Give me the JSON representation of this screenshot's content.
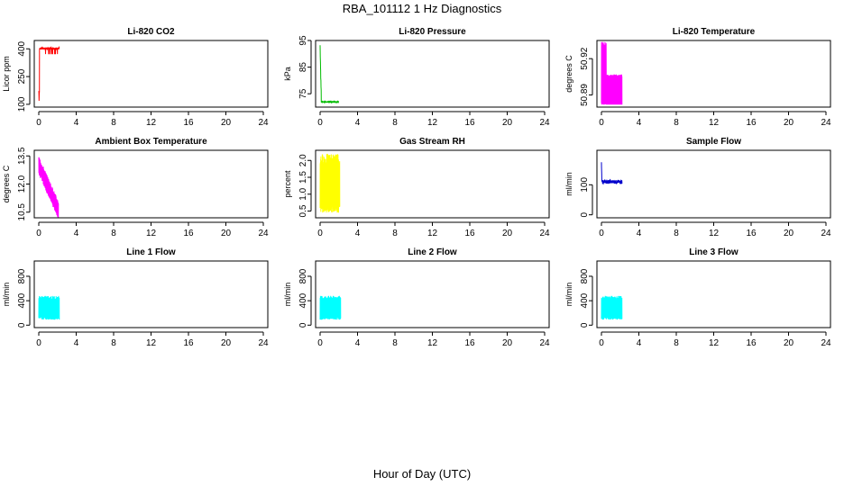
{
  "title": "RBA_101112  1 Hz Diagnostics",
  "xlabel": "Hour of Day (UTC)",
  "chart_data": [
    {
      "type": "line",
      "title": "Li-820 CO2",
      "ylabel": "Licor ppm",
      "xlim": [
        0,
        24
      ],
      "ylim": [
        85,
        445
      ],
      "xticks": [
        "0",
        "4",
        "8",
        "12",
        "16",
        "20",
        "24"
      ],
      "yticks": [
        {
          "v": 100,
          "l": "100"
        },
        {
          "v": 250,
          "l": "250"
        },
        {
          "v": 400,
          "l": "400"
        }
      ],
      "color": "#ff0000",
      "pattern": "co2",
      "x_end": 2.2
    },
    {
      "type": "line",
      "title": "Li-820 Pressure",
      "ylabel": "kPa",
      "xlim": [
        0,
        24
      ],
      "ylim": [
        70,
        95
      ],
      "xticks": [
        "0",
        "4",
        "8",
        "12",
        "16",
        "20",
        "24"
      ],
      "yticks": [
        {
          "v": 75,
          "l": "75"
        },
        {
          "v": 85,
          "l": "85"
        },
        {
          "v": 95,
          "l": "95"
        }
      ],
      "color": "#00bb00",
      "pattern": "pressure",
      "x_end": 2.0
    },
    {
      "type": "line",
      "title": "Li-820 Temperature",
      "ylabel": "degrees C",
      "xlim": [
        0,
        24
      ],
      "ylim": [
        50.88,
        50.935
      ],
      "xticks": [
        "0",
        "4",
        "8",
        "12",
        "16",
        "20",
        "24"
      ],
      "yticks": [
        {
          "v": 50.89,
          "l": "50.89"
        },
        {
          "v": 50.92,
          "l": "50.92"
        }
      ],
      "color": "#ff00ff",
      "pattern": "licortemp",
      "x_end": 2.2
    },
    {
      "type": "line",
      "title": "Ambient Box Temperature",
      "ylabel": "degrees C",
      "xlim": [
        0,
        24
      ],
      "ylim": [
        10.2,
        13.8
      ],
      "xticks": [
        "0",
        "4",
        "8",
        "12",
        "16",
        "20",
        "24"
      ],
      "yticks": [
        {
          "v": 10.5,
          "l": "10.5"
        },
        {
          "v": 12.0,
          "l": "12.0"
        },
        {
          "v": 13.5,
          "l": "13.5"
        }
      ],
      "color": "#ff00ff",
      "pattern": "ambient",
      "x_end": 2.1
    },
    {
      "type": "line",
      "title": "Gas Stream RH",
      "ylabel": "percent",
      "xlim": [
        0,
        24
      ],
      "ylim": [
        0.3,
        2.3
      ],
      "xticks": [
        "0",
        "4",
        "8",
        "12",
        "16",
        "20",
        "24"
      ],
      "yticks": [
        {
          "v": 0.5,
          "l": "0.5"
        },
        {
          "v": 1.0,
          "l": "1.0"
        },
        {
          "v": 1.5,
          "l": "1.5"
        },
        {
          "v": 2.0,
          "l": "2.0"
        }
      ],
      "color": "#ffff00",
      "pattern": "rh",
      "x_end": 2.1
    },
    {
      "type": "line",
      "title": "Sample Flow",
      "ylabel": "ml/min",
      "xlim": [
        0,
        24
      ],
      "ylim": [
        -10,
        215
      ],
      "xticks": [
        "0",
        "4",
        "8",
        "12",
        "16",
        "20",
        "24"
      ],
      "yticks": [
        {
          "v": 0,
          "l": "0"
        },
        {
          "v": 100,
          "l": "100"
        }
      ],
      "color": "#0000cc",
      "pattern": "sample",
      "x_end": 2.2
    },
    {
      "type": "line",
      "title": "Line 1 Flow",
      "ylabel": "ml/min",
      "xlim": [
        0,
        24
      ],
      "ylim": [
        -40,
        1050
      ],
      "xticks": [
        "0",
        "4",
        "8",
        "12",
        "16",
        "20",
        "24"
      ],
      "yticks": [
        {
          "v": 0,
          "l": "0"
        },
        {
          "v": 400,
          "l": "400"
        },
        {
          "v": 800,
          "l": "800"
        }
      ],
      "color": "#00ffff",
      "pattern": "flow",
      "x_end": 2.2
    },
    {
      "type": "line",
      "title": "Line 2 Flow",
      "ylabel": "ml/min",
      "xlim": [
        0,
        24
      ],
      "ylim": [
        -40,
        1050
      ],
      "xticks": [
        "0",
        "4",
        "8",
        "12",
        "16",
        "20",
        "24"
      ],
      "yticks": [
        {
          "v": 0,
          "l": "0"
        },
        {
          "v": 400,
          "l": "400"
        },
        {
          "v": 800,
          "l": "800"
        }
      ],
      "color": "#00ffff",
      "pattern": "flow",
      "x_end": 2.2
    },
    {
      "type": "line",
      "title": "Line 3 Flow",
      "ylabel": "ml/min",
      "xlim": [
        0,
        24
      ],
      "ylim": [
        -40,
        1050
      ],
      "xticks": [
        "0",
        "4",
        "8",
        "12",
        "16",
        "20",
        "24"
      ],
      "yticks": [
        {
          "v": 0,
          "l": "0"
        },
        {
          "v": 400,
          "l": "400"
        },
        {
          "v": 800,
          "l": "800"
        }
      ],
      "color": "#00ffff",
      "pattern": "flow",
      "x_end": 2.2
    }
  ]
}
